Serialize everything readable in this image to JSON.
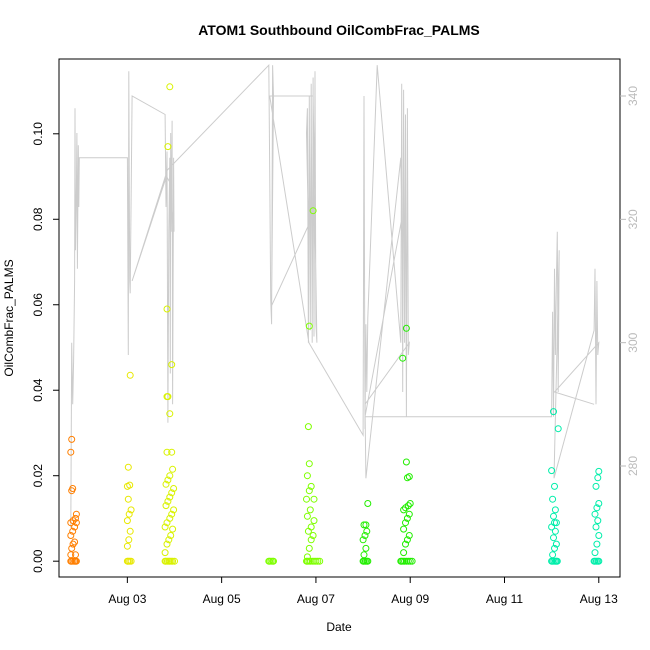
{
  "chart_data": {
    "type": "scatter",
    "title": "ATOM1 Southbound OilCombFrac_PALMS",
    "xlabel": "Date",
    "ylabel": "OilCombFrac_PALMS",
    "x_unit": "days in August",
    "xlim": [
      1.55,
      13.45
    ],
    "ylim": [
      -0.0037,
      0.1175
    ],
    "x_ticks": [
      {
        "value": 3,
        "label": "Aug 03"
      },
      {
        "value": 5,
        "label": "Aug 05"
      },
      {
        "value": 7,
        "label": "Aug 07"
      },
      {
        "value": 9,
        "label": "Aug 09"
      },
      {
        "value": 11,
        "label": "Aug 11"
      },
      {
        "value": 13,
        "label": "Aug 13"
      }
    ],
    "y_ticks": [
      0.0,
      0.02,
      0.04,
      0.06,
      0.08,
      0.1
    ],
    "y_tick_labels": [
      "0.00",
      "0.02",
      "0.04",
      "0.06",
      "0.08",
      "0.10"
    ],
    "secondary_axis": {
      "side": "right",
      "color": "#bbbbbb",
      "ylim": [
        262,
        346
      ],
      "ticks": [
        280,
        300,
        320,
        340
      ],
      "tick_labels": [
        "280",
        "300",
        "320",
        "340"
      ]
    },
    "grid": false,
    "series": [
      {
        "color": "#ff7f00",
        "points": [
          [
            1.8,
            0.0
          ],
          [
            1.82,
            0.0
          ],
          [
            1.85,
            0.0
          ],
          [
            1.88,
            0.0
          ],
          [
            1.9,
            0.0
          ],
          [
            1.92,
            0.0
          ],
          [
            1.8,
            0.0015
          ],
          [
            1.82,
            0.003
          ],
          [
            1.85,
            0.004
          ],
          [
            1.8,
            0.006
          ],
          [
            1.84,
            0.007
          ],
          [
            1.88,
            0.008
          ],
          [
            1.8,
            0.009
          ],
          [
            1.85,
            0.0095
          ],
          [
            1.9,
            0.01
          ],
          [
            1.92,
            0.011
          ],
          [
            1.82,
            0.0165
          ],
          [
            1.84,
            0.017
          ],
          [
            1.8,
            0.0255
          ],
          [
            1.82,
            0.0285
          ],
          [
            1.9,
            0.0015
          ],
          [
            1.88,
            0.0045
          ],
          [
            1.92,
            0.009
          ]
        ]
      },
      {
        "color": "#e8e800",
        "points": [
          [
            3.0,
            0.0
          ],
          [
            3.02,
            0.0
          ],
          [
            3.05,
            0.0
          ],
          [
            3.08,
            0.0
          ],
          [
            3.0,
            0.0035
          ],
          [
            3.03,
            0.005
          ],
          [
            3.06,
            0.007
          ],
          [
            3.0,
            0.0095
          ],
          [
            3.04,
            0.011
          ],
          [
            3.08,
            0.012
          ],
          [
            3.02,
            0.0145
          ],
          [
            3.0,
            0.0175
          ],
          [
            3.05,
            0.0178
          ],
          [
            3.02,
            0.022
          ],
          [
            3.06,
            0.0435
          ]
        ]
      },
      {
        "color": "#d9f200",
        "points": [
          [
            3.8,
            0.0
          ],
          [
            3.82,
            0.0
          ],
          [
            3.85,
            0.0
          ],
          [
            3.88,
            0.0
          ],
          [
            3.9,
            0.0
          ],
          [
            3.93,
            0.0
          ],
          [
            3.96,
            0.0
          ],
          [
            4.0,
            0.0
          ],
          [
            3.8,
            0.002
          ],
          [
            3.84,
            0.004
          ],
          [
            3.88,
            0.005
          ],
          [
            3.92,
            0.006
          ],
          [
            3.96,
            0.0075
          ],
          [
            3.8,
            0.008
          ],
          [
            3.84,
            0.009
          ],
          [
            3.9,
            0.01
          ],
          [
            3.94,
            0.011
          ],
          [
            3.98,
            0.012
          ],
          [
            3.82,
            0.013
          ],
          [
            3.86,
            0.014
          ],
          [
            3.9,
            0.015
          ],
          [
            3.94,
            0.016
          ],
          [
            3.98,
            0.017
          ],
          [
            3.82,
            0.018
          ],
          [
            3.86,
            0.019
          ],
          [
            3.9,
            0.02
          ],
          [
            3.96,
            0.0215
          ],
          [
            3.84,
            0.0255
          ],
          [
            3.94,
            0.0255
          ],
          [
            3.9,
            0.0345
          ],
          [
            3.84,
            0.0385
          ],
          [
            3.86,
            0.0385
          ],
          [
            3.94,
            0.046
          ],
          [
            3.84,
            0.059
          ],
          [
            3.86,
            0.097
          ],
          [
            3.9,
            0.111
          ]
        ]
      },
      {
        "color": "#7fff00",
        "points": [
          [
            6.0,
            0.0
          ],
          [
            6.02,
            0.0
          ],
          [
            6.05,
            0.0
          ],
          [
            6.08,
            0.0
          ],
          [
            6.1,
            0.0
          ],
          [
            6.8,
            0.0
          ],
          [
            6.82,
            0.0
          ],
          [
            6.85,
            0.0
          ],
          [
            6.88,
            0.0
          ],
          [
            6.92,
            0.0
          ],
          [
            6.96,
            0.0
          ],
          [
            7.0,
            0.0
          ],
          [
            7.04,
            0.0
          ],
          [
            7.08,
            0.0
          ],
          [
            6.82,
            0.001
          ],
          [
            6.86,
            0.003
          ],
          [
            6.9,
            0.005
          ],
          [
            6.94,
            0.006
          ],
          [
            6.84,
            0.007
          ],
          [
            6.9,
            0.008
          ],
          [
            6.96,
            0.0095
          ],
          [
            6.82,
            0.0105
          ],
          [
            6.88,
            0.012
          ],
          [
            6.96,
            0.0145
          ],
          [
            6.8,
            0.0145
          ],
          [
            6.86,
            0.0165
          ],
          [
            6.9,
            0.0175
          ],
          [
            6.82,
            0.02
          ],
          [
            6.86,
            0.0228
          ],
          [
            6.84,
            0.0315
          ],
          [
            6.86,
            0.055
          ],
          [
            6.94,
            0.082
          ]
        ]
      },
      {
        "color": "#22ee00",
        "points": [
          [
            8.0,
            0.0
          ],
          [
            8.02,
            0.0
          ],
          [
            8.05,
            0.0
          ],
          [
            8.08,
            0.0
          ],
          [
            8.1,
            0.0
          ],
          [
            8.8,
            0.0
          ],
          [
            8.82,
            0.0
          ],
          [
            8.85,
            0.0
          ],
          [
            8.88,
            0.0
          ],
          [
            8.92,
            0.0
          ],
          [
            8.96,
            0.0
          ],
          [
            9.0,
            0.0
          ],
          [
            9.04,
            0.0
          ],
          [
            8.02,
            0.0015
          ],
          [
            8.06,
            0.003
          ],
          [
            8.0,
            0.005
          ],
          [
            8.04,
            0.006
          ],
          [
            8.08,
            0.007
          ],
          [
            8.02,
            0.0085
          ],
          [
            8.06,
            0.0085
          ],
          [
            8.1,
            0.0135
          ],
          [
            8.86,
            0.002
          ],
          [
            8.9,
            0.004
          ],
          [
            8.94,
            0.005
          ],
          [
            8.98,
            0.006
          ],
          [
            8.86,
            0.0075
          ],
          [
            8.9,
            0.009
          ],
          [
            8.94,
            0.01
          ],
          [
            8.98,
            0.011
          ],
          [
            8.86,
            0.012
          ],
          [
            8.9,
            0.0125
          ],
          [
            8.96,
            0.013
          ],
          [
            9.0,
            0.0135
          ],
          [
            8.94,
            0.0195
          ],
          [
            8.98,
            0.0198
          ],
          [
            8.92,
            0.0232
          ],
          [
            8.84,
            0.0475
          ],
          [
            8.92,
            0.0545
          ]
        ]
      },
      {
        "color": "#00eeaa",
        "points": [
          [
            12.0,
            0.0
          ],
          [
            12.02,
            0.0
          ],
          [
            12.05,
            0.0
          ],
          [
            12.08,
            0.0
          ],
          [
            12.1,
            0.0
          ],
          [
            12.12,
            0.0
          ],
          [
            12.9,
            0.0
          ],
          [
            12.92,
            0.0
          ],
          [
            12.95,
            0.0
          ],
          [
            12.98,
            0.0
          ],
          [
            13.0,
            0.0
          ],
          [
            12.02,
            0.0015
          ],
          [
            12.06,
            0.003
          ],
          [
            12.1,
            0.004
          ],
          [
            12.04,
            0.0055
          ],
          [
            12.08,
            0.007
          ],
          [
            12.0,
            0.008
          ],
          [
            12.06,
            0.009
          ],
          [
            12.1,
            0.009
          ],
          [
            12.04,
            0.0105
          ],
          [
            12.08,
            0.012
          ],
          [
            12.02,
            0.0145
          ],
          [
            12.06,
            0.0175
          ],
          [
            12.0,
            0.0212
          ],
          [
            12.04,
            0.035
          ],
          [
            12.14,
            0.031
          ],
          [
            12.92,
            0.002
          ],
          [
            12.96,
            0.004
          ],
          [
            13.0,
            0.006
          ],
          [
            12.94,
            0.008
          ],
          [
            12.98,
            0.0095
          ],
          [
            12.92,
            0.011
          ],
          [
            12.96,
            0.0125
          ],
          [
            13.0,
            0.0135
          ],
          [
            12.94,
            0.0175
          ],
          [
            12.98,
            0.0195
          ],
          [
            13.0,
            0.021
          ]
        ]
      }
    ],
    "secondary_line": {
      "color": "#cccccc",
      "points": [
        [
          1.8,
          270
        ],
        [
          1.82,
          300
        ],
        [
          1.84,
          290
        ],
        [
          1.86,
          297
        ],
        [
          1.88,
          310
        ],
        [
          1.89,
          338
        ],
        [
          1.9,
          315
        ],
        [
          1.92,
          325
        ],
        [
          1.93,
          334
        ],
        [
          1.94,
          312
        ],
        [
          1.96,
          332
        ],
        [
          1.97,
          322
        ],
        [
          1.98,
          330
        ],
        [
          3.0,
          330
        ],
        [
          3.02,
          298
        ],
        [
          3.03,
          344
        ],
        [
          3.05,
          310
        ],
        [
          3.06,
          308
        ],
        [
          3.1,
          340
        ],
        [
          3.8,
          337
        ],
        [
          3.82,
          322
        ],
        [
          3.84,
          331
        ],
        [
          3.86,
          287
        ],
        [
          3.88,
          318
        ],
        [
          3.9,
          330
        ],
        [
          3.91,
          295
        ],
        [
          3.92,
          334
        ],
        [
          3.94,
          318
        ],
        [
          3.95,
          336
        ],
        [
          3.96,
          290
        ],
        [
          3.98,
          330
        ],
        [
          3.99,
          318
        ],
        [
          3.9,
          326
        ],
        [
          3.83,
          327
        ],
        [
          3.1,
          310
        ],
        [
          3.85,
          328
        ],
        [
          6.0,
          345
        ],
        [
          6.02,
          328
        ],
        [
          6.04,
          307
        ],
        [
          6.06,
          303
        ],
        [
          6.08,
          345
        ],
        [
          6.1,
          340
        ],
        [
          6.06,
          306
        ],
        [
          6.84,
          319
        ],
        [
          6.8,
          334
        ],
        [
          6.82,
          338
        ],
        [
          6.84,
          300
        ],
        [
          6.86,
          340
        ],
        [
          6.88,
          302
        ],
        [
          6.9,
          342
        ],
        [
          6.92,
          300
        ],
        [
          6.94,
          343
        ],
        [
          6.96,
          301
        ],
        [
          6.98,
          344
        ],
        [
          7.0,
          303
        ],
        [
          7.02,
          300
        ],
        [
          6.94,
          340
        ],
        [
          6.02,
          340
        ],
        [
          6.85,
          300
        ],
        [
          8.0,
          285
        ],
        [
          8.02,
          340
        ],
        [
          8.04,
          286
        ],
        [
          8.06,
          303
        ],
        [
          8.08,
          292
        ],
        [
          8.1,
          304
        ],
        [
          8.3,
          345
        ],
        [
          8.8,
          300
        ],
        [
          8.82,
          342
        ],
        [
          8.84,
          292
        ],
        [
          8.86,
          341
        ],
        [
          8.88,
          300
        ],
        [
          8.9,
          337
        ],
        [
          8.92,
          288
        ],
        [
          8.94,
          338
        ],
        [
          8.96,
          298
        ],
        [
          8.98,
          300
        ],
        [
          8.04,
          290
        ],
        [
          8.06,
          278
        ],
        [
          8.8,
          330
        ],
        [
          8.82,
          320
        ],
        [
          8.04,
          288
        ],
        [
          12.0,
          288
        ],
        [
          12.02,
          305
        ],
        [
          12.04,
          288
        ],
        [
          12.06,
          312
        ],
        [
          12.08,
          298
        ],
        [
          12.1,
          310
        ],
        [
          12.12,
          318
        ],
        [
          12.14,
          292
        ],
        [
          12.16,
          315
        ],
        [
          12.05,
          278
        ],
        [
          12.9,
          302
        ],
        [
          12.92,
          312
        ],
        [
          12.94,
          290
        ],
        [
          12.96,
          310
        ],
        [
          12.98,
          298
        ],
        [
          13.0,
          300
        ],
        [
          12.06,
          292
        ],
        [
          12.9,
          290
        ]
      ]
    }
  }
}
